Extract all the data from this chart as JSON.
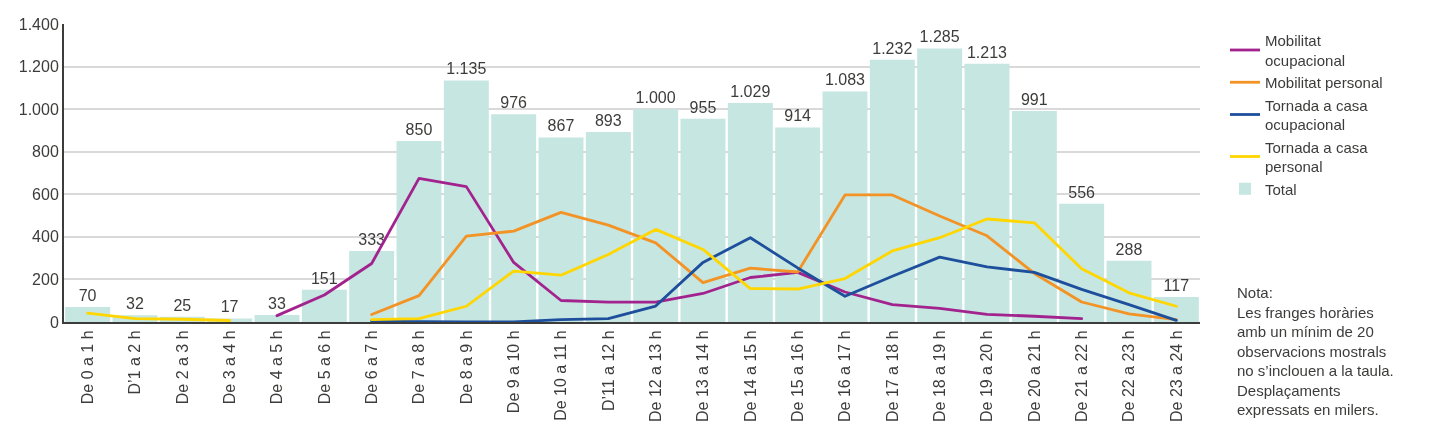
{
  "chart_data": {
    "type": "bar",
    "categories": [
      "De 0 a 1 h",
      "D’1 a 2 h",
      "De 2 a 3 h",
      "De 3 a 4 h",
      "De 4 a 5 h",
      "De 5 a 6 h",
      "De 6 a 7 h",
      "De 7 a 8 h",
      "De 8 a 9 h",
      "De 9 a 10 h",
      "De 10 a 11 h",
      "D’11 a 12 h",
      "De 12 a 13 h",
      "De 13 a 14 h",
      "De 14 a 15 h",
      "De 15 a 16 h",
      "De 16 a 17 h",
      "De 17 a 18 h",
      "De 18 a 19 h",
      "De 19 a 20 h",
      "De 20 a 21 h",
      "De 21 a 22 h",
      "De 22 a 23 h",
      "De 23 a 24 h"
    ],
    "series": [
      {
        "name": "Mobilitat ocupacional",
        "type": "line",
        "color": "#a3238e",
        "values": [
          null,
          null,
          null,
          null,
          30,
          127,
          275,
          675,
          636,
          280,
          101,
          93,
          93,
          134,
          209,
          233,
          141,
          82,
          64,
          36,
          27,
          16,
          null,
          null
        ]
      },
      {
        "name": "Mobilitat personal",
        "type": "line",
        "color": "#f39325",
        "values": [
          null,
          null,
          null,
          null,
          null,
          null,
          35,
          124,
          403,
          427,
          515,
          455,
          372,
          185,
          253,
          235,
          597,
          597,
          498,
          405,
          228,
          94,
          38,
          11
        ]
      },
      {
        "name": "Tornada a casa ocupacional",
        "type": "line",
        "color": "#1d4f9c",
        "values": [
          null,
          null,
          null,
          null,
          null,
          null,
          5,
          2,
          1,
          1,
          11,
          16,
          75,
          280,
          396,
          254,
          121,
          215,
          305,
          259,
          233,
          153,
          82,
          8
        ]
      },
      {
        "name": "Tornada a casa personal",
        "type": "line",
        "color": "#ffd600",
        "values": [
          42,
          16,
          13,
          7,
          null,
          null,
          11,
          16,
          74,
          239,
          220,
          317,
          435,
          341,
          157,
          155,
          204,
          334,
          396,
          484,
          466,
          250,
          137,
          74
        ]
      },
      {
        "name": "Total",
        "color": "#c6e6e1",
        "values": [
          70,
          32,
          25,
          17,
          33,
          151,
          333,
          850,
          1135,
          976,
          867,
          893,
          1000,
          955,
          1029,
          914,
          1083,
          1232,
          1285,
          1213,
          991,
          556,
          288,
          117
        ],
        "value_labels": [
          "70",
          "32",
          "25",
          "17",
          "33",
          "151",
          "333",
          "850",
          "1.135",
          "976",
          "867",
          "893",
          "1.000",
          "955",
          "1.029",
          "914",
          "1.083",
          "1.232",
          "1.285",
          "1.213",
          "991",
          "556",
          "288",
          "117"
        ]
      }
    ],
    "ylim": [
      0,
      1400
    ],
    "yticks": [
      0,
      200,
      400,
      600,
      800,
      {
        "value": 1000,
        "label": "1.000"
      },
      {
        "value": 1200,
        "label": "1.200"
      },
      {
        "value": 1400,
        "label": "1.400"
      }
    ],
    "grid": "y",
    "legend": "top right",
    "annotations": [
      "Nota:\nLes franges horàries\namb un mínim de 20\nobservacions mostrals\nno s’inclouen a la taula.\nDesplaçaments\nexpressats en milers."
    ]
  }
}
